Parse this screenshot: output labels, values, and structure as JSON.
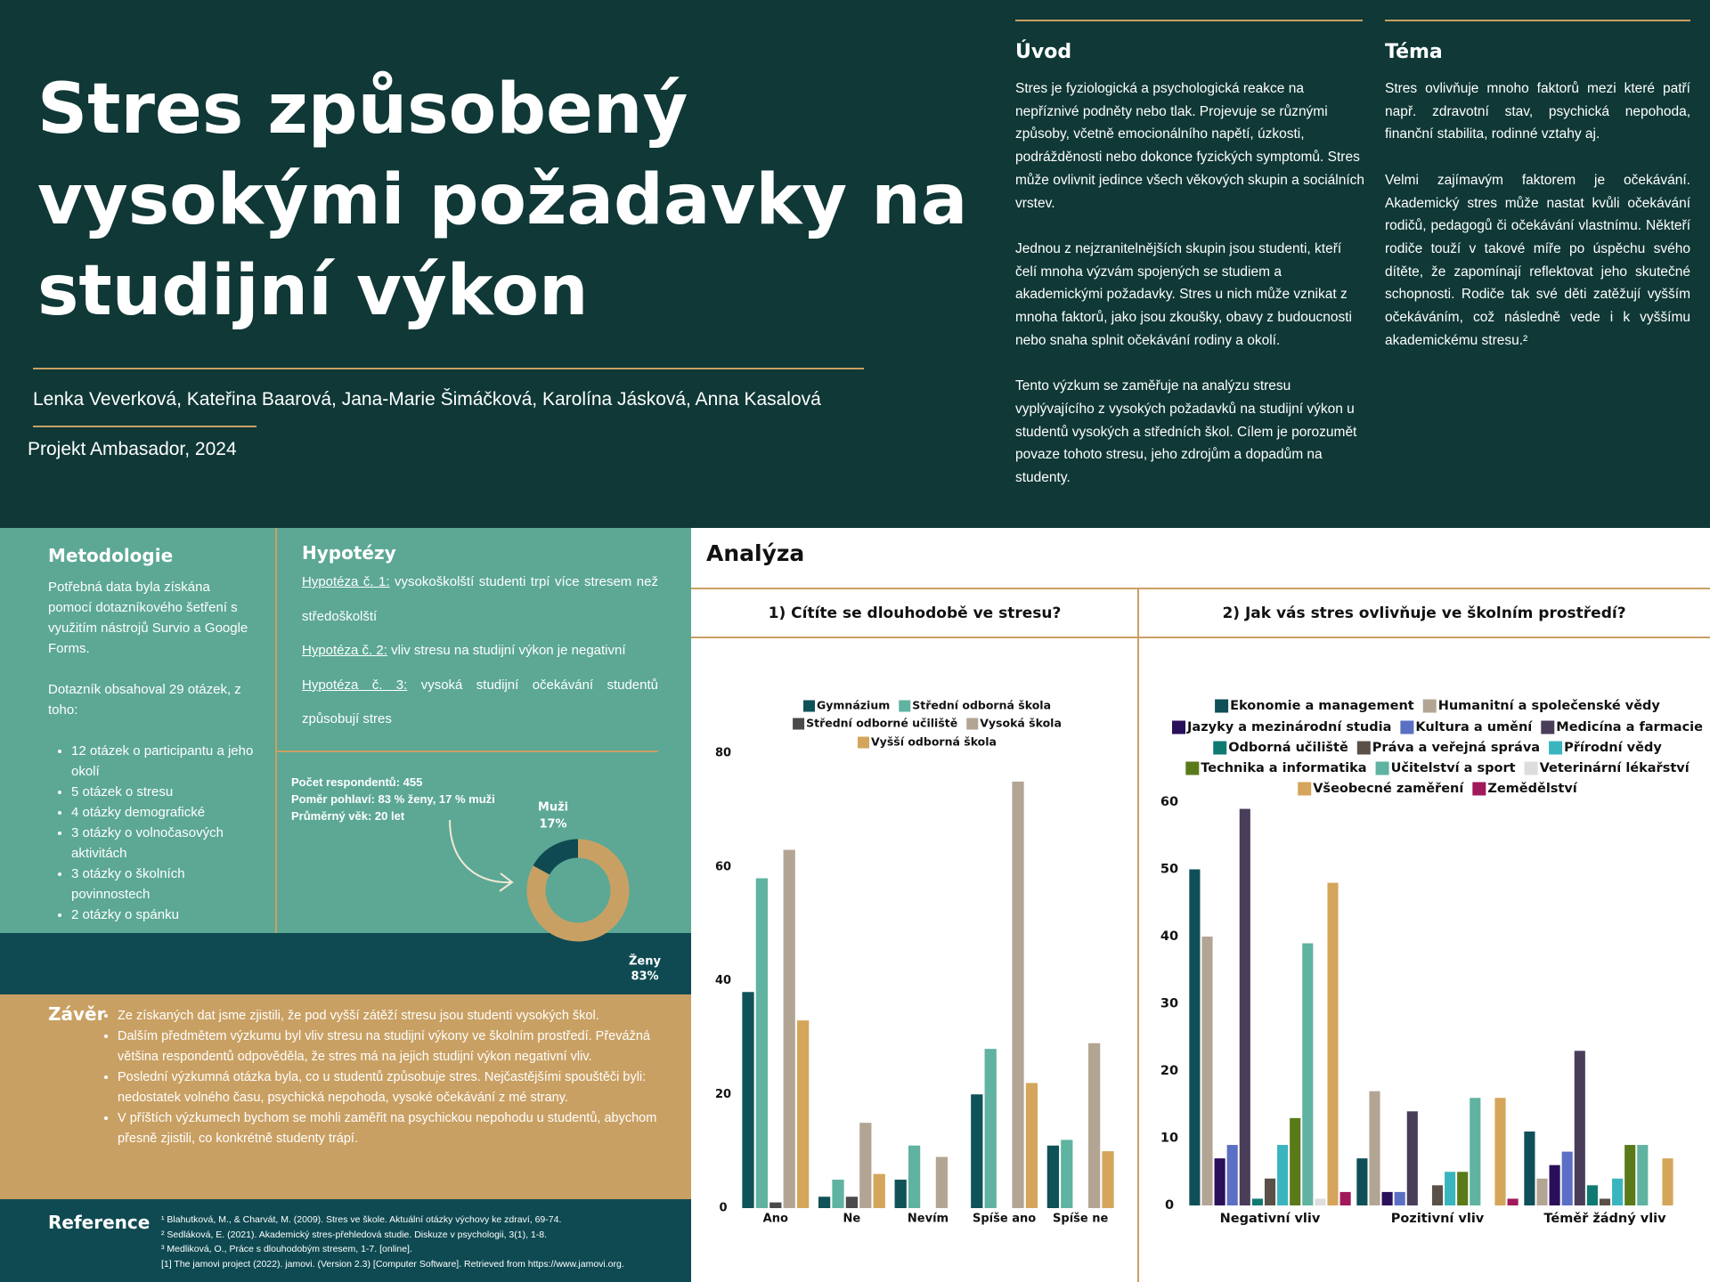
{
  "header": {
    "title_lines": [
      "Stres způsobený",
      "vysokými požadavky na",
      "studijní výkon"
    ],
    "authors": "Lenka Veverková, Kateřina Baarová, Jana-Marie Šimáčková, Karolína Jásková, Anna Kasalová",
    "project": "Projekt Ambasador, 2024"
  },
  "intro": {
    "heading": "Úvod",
    "paragraphs": [
      "Stres je fyziologická a psychologická reakce na nepříznivé podněty nebo tlak. Projevuje se různými způsoby, včetně emocionálního napětí, úzkosti, podrážděnosti nebo dokonce fyzických symptomů. Stres může ovlivnit jedince všech věkových skupin a sociálních vrstev.",
      "Jednou z nejzranitelnějších skupin jsou studenti, kteří čelí mnoha výzvám spojených se studiem a akademickými požadavky. Stres u nich může vznikat z mnoha faktorů, jako jsou zkoušky, obavy z budoucnosti nebo snaha splnit očekávání rodiny a okolí.",
      "Tento výzkum se zaměřuje na analýzu stresu vyplývajícího z vysokých požadavků na studijní výkon u studentů vysokých a středních škol. Cílem je porozumět povaze tohoto stresu, jeho zdrojům a dopadům na studenty."
    ]
  },
  "topic": {
    "heading": "Téma",
    "paragraphs": [
      "Stres ovlivňuje mnoho faktorů mezi které patří např. zdravotní stav, psychická nepohoda, finanční stabilita, rodinné vztahy aj.",
      "Velmi zajímavým faktorem je očekávání. Akademický stres může nastat kvůli očekávání rodičů, pedagogů či očekávání vlastnímu. Někteří rodiče touží v takové míře po úspěchu svého dítěte, že zapomínají reflektovat jeho skutečné schopnosti. Rodiče tak své děti zatěžují vyšším očekáváním, což následně vede i k vyššímu akademickému stresu.²"
    ]
  },
  "methodology": {
    "heading": "Metodologie",
    "paragraphs": [
      "Potřebná data byla získána pomocí dotazníkového šetření s využitím nástrojů Survio a Google Forms.",
      "Dotazník obsahoval 29 otázek, z toho:"
    ],
    "items": [
      "12 otázek o participantu a jeho okolí",
      "5 otázek o stresu",
      "4 otázky demografické",
      "3 otázky o volnočasových aktivitách",
      "3 otázky o školních povinnostech",
      "2 otázky o spánku"
    ]
  },
  "hypotheses": {
    "heading": "Hypotézy",
    "items": [
      {
        "label": "Hypotéza č. 1:",
        "text": "vysokoškolští studenti trpí více stresem než středoškolští"
      },
      {
        "label": "Hypotéza č. 2:",
        "text": "vliv stresu na studijní výkon je negativní"
      },
      {
        "label": "Hypotéza č. 3:",
        "text": "vysoká studijní očekávání studentů způsobují stres"
      }
    ]
  },
  "respondents": {
    "lines": [
      "Počet respondentů: 455",
      "Poměr pohlaví: 83 % ženy, 17 % muži",
      "Průměrný věk: 20 let"
    ]
  },
  "conclusion": {
    "heading": "Závěr",
    "items": [
      "Ze získaných dat jsme zjistili, že pod vyšší zátěží stresu jsou studenti vysokých škol.",
      "Dalším předmětem výzkumu byl vliv stresu na studijní výkony ve školním prostředí. Převážná většina respondentů odpověděla, že stres má na jejich studijní výkon negativní vliv.",
      "Poslední výzkumná otázka byla, co u studentů způsobuje stres. Nejčastějšími spouštěči byli: nedostatek volného času, psychická nepohoda, vysoké očekávání z mé strany.",
      "V příštích výzkumech bychom se mohli zaměřit na psychickou nepohodu u studentů, abychom přesně zjistili, co konkrétně studenty trápí."
    ]
  },
  "references": {
    "heading": "Reference",
    "items": [
      "¹ Blahutková, M., & Charvát, M. (2009). Stres ve škole. Aktuální otázky výchovy ke zdraví, 69-74.",
      "² Sedláková, E. (2021). Akademický stres-přehledová studie. Diskuze v psychologii, 3(1), 1-8.",
      "³ Medliková, O., Práce s dlouhodobým stresem, 1-7. [online].",
      "[1] The jamovi project (2022). jamovi. (Version 2.3) [Computer Software]. Retrieved from https://www.jamovi.org."
    ]
  },
  "analysis": {
    "heading": "Analýza"
  },
  "chart_data": [
    {
      "type": "donut",
      "categories": [
        "Muži",
        "Ženy"
      ],
      "values": [
        17,
        83
      ],
      "value_labels": [
        "17%",
        "83%"
      ],
      "colors": [
        "#0f4a52",
        "#c9a063"
      ]
    },
    {
      "type": "bar",
      "title": "1) Cítíte se dlouhodobě ve stresu?",
      "categories": [
        "Ano",
        "Ne",
        "Nevím",
        "Spíše ano",
        "Spíše ne"
      ],
      "series": [
        {
          "name": "Gymnázium",
          "color": "#0f5257",
          "values": [
            38,
            2,
            5,
            20,
            11
          ]
        },
        {
          "name": "Střední odborná škola",
          "color": "#5fb3a0",
          "values": [
            58,
            5,
            11,
            28,
            12
          ]
        },
        {
          "name": "Střední odborné učiliště",
          "color": "#4a4a4a",
          "values": [
            1,
            2,
            0,
            0,
            0
          ]
        },
        {
          "name": "Vysoká škola",
          "color": "#b3a594",
          "values": [
            63,
            15,
            9,
            75,
            29
          ]
        },
        {
          "name": "Vyšší odborná škola",
          "color": "#d4a55a",
          "values": [
            33,
            6,
            0,
            22,
            10
          ]
        }
      ],
      "ylim": [
        0,
        80
      ],
      "yticks": [
        0,
        20,
        40,
        60,
        80
      ],
      "grid": false,
      "legend": "top"
    },
    {
      "type": "bar",
      "title": "2) Jak vás stres ovlivňuje ve školním prostředí?",
      "categories": [
        "Negativní vliv",
        "Pozitivní vliv",
        "Téměř žádný vliv"
      ],
      "series": [
        {
          "name": "Ekonomie a management",
          "color": "#0f4f57",
          "values": [
            50,
            7,
            11
          ]
        },
        {
          "name": "Humanitní a společenské vědy",
          "color": "#b3a594",
          "values": [
            40,
            17,
            4
          ]
        },
        {
          "name": "Jazyky a mezinárodní studia",
          "color": "#2a0f5a",
          "values": [
            7,
            2,
            6
          ]
        },
        {
          "name": "Kultura a umění",
          "color": "#5b6fc4",
          "values": [
            9,
            2,
            8
          ]
        },
        {
          "name": "Medicína a farmacie",
          "color": "#4a3d5a",
          "values": [
            59,
            14,
            23
          ]
        },
        {
          "name": "Odborná učiliště",
          "color": "#0f7a72",
          "values": [
            1,
            0,
            3
          ]
        },
        {
          "name": "Práva a veřejná správa",
          "color": "#5a5048",
          "values": [
            4,
            3,
            1
          ]
        },
        {
          "name": "Přírodní vědy",
          "color": "#3ab5c0",
          "values": [
            9,
            5,
            4
          ]
        },
        {
          "name": "Technika a informatika",
          "color": "#5a7a1a",
          "values": [
            13,
            5,
            9
          ]
        },
        {
          "name": "Učitelství a sport",
          "color": "#5fb3a0",
          "values": [
            39,
            16,
            9
          ]
        },
        {
          "name": "Veterinární lékařství",
          "color": "#dddddd",
          "values": [
            1,
            0,
            0
          ]
        },
        {
          "name": "Všeobecné zaměření",
          "color": "#d4a55a",
          "values": [
            48,
            16,
            7
          ]
        },
        {
          "name": "Zemědělství",
          "color": "#a0195a",
          "values": [
            2,
            1,
            0
          ]
        }
      ],
      "ylim": [
        0,
        60
      ],
      "yticks": [
        0,
        10,
        20,
        30,
        40,
        50,
        60
      ],
      "grid": false,
      "legend": "top"
    }
  ]
}
